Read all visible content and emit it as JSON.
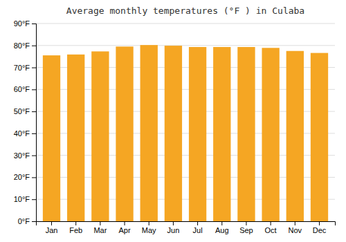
{
  "chart_data": {
    "type": "bar",
    "title": "Average monthly temperatures (°F ) in Culaba",
    "categories": [
      "Jan",
      "Feb",
      "Mar",
      "Apr",
      "May",
      "Jun",
      "Jul",
      "Aug",
      "Sep",
      "Oct",
      "Nov",
      "Dec"
    ],
    "values": [
      75.5,
      75.9,
      77.3,
      79.5,
      80.2,
      79.9,
      79.3,
      79.3,
      79.3,
      78.9,
      77.5,
      76.6
    ],
    "color": "#F5A623",
    "ylim": [
      0,
      90
    ],
    "yticks": [
      {
        "value": 0,
        "label": "0°F"
      },
      {
        "value": 10,
        "label": "10°F"
      },
      {
        "value": 20,
        "label": "20°F"
      },
      {
        "value": 30,
        "label": "30°F"
      },
      {
        "value": 40,
        "label": "40°F"
      },
      {
        "value": 50,
        "label": "50°F"
      },
      {
        "value": 60,
        "label": "60°F"
      },
      {
        "value": 70,
        "label": "70°F"
      },
      {
        "value": 80,
        "label": "80°F"
      },
      {
        "value": 90,
        "label": "90°F"
      }
    ],
    "grid": true
  }
}
